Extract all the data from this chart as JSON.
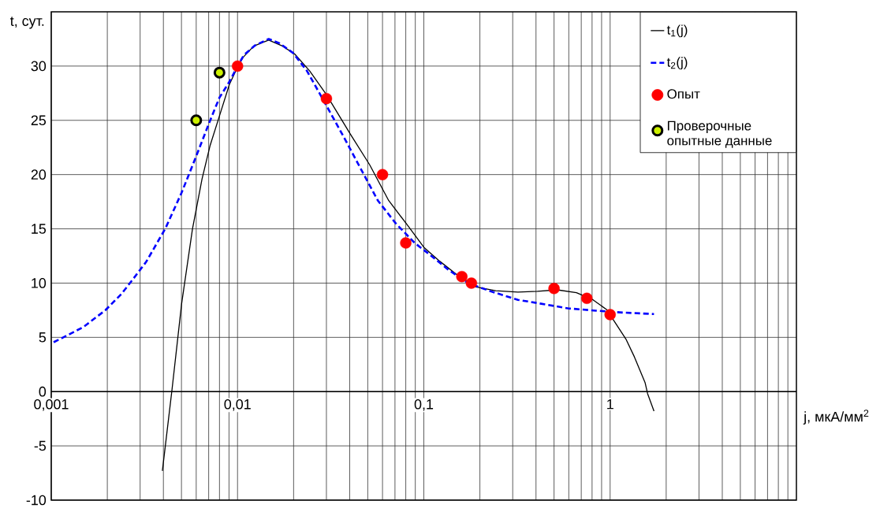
{
  "chart_data": {
    "type": "line",
    "xlabel": "j, мкА/мм$^{2}$",
    "ylabel": "t, сут.",
    "log": "x",
    "xlim": [
      0.001,
      10
    ],
    "ylim": [
      -10,
      35
    ],
    "xticks": [
      {
        "value": 0.001,
        "label": "0,001"
      },
      {
        "value": 0.01,
        "label": "0,01"
      },
      {
        "value": 0.1,
        "label": "0,1"
      },
      {
        "value": 1,
        "label": "1"
      }
    ],
    "yticks": [
      -10,
      -5,
      0,
      5,
      10,
      15,
      20,
      25,
      30
    ],
    "grid": true,
    "legend": "top right",
    "series": [
      {
        "name": "t$_{1}$(j)",
        "color": "#000000",
        "line_style": "solid",
        "marker": "none",
        "x": [
          0.00395,
          0.00445,
          0.00501,
          0.00573,
          0.00645,
          0.00713,
          0.00803,
          0.00904,
          0.01,
          0.0107,
          0.01225,
          0.0147,
          0.0174,
          0.0203,
          0.0244,
          0.0299,
          0.0404,
          0.0512,
          0.0648,
          0.082,
          0.1,
          0.122,
          0.15,
          0.191,
          0.243,
          0.32,
          0.407,
          0.52,
          0.66,
          0.81,
          0.96,
          1.22,
          1.35,
          1.54,
          1.59,
          1.72
        ],
        "values": [
          -7.3,
          0.2,
          8.1,
          15.0,
          19.6,
          22.7,
          25.5,
          28.3,
          29.9,
          30.8,
          31.85,
          32.4,
          31.85,
          31.1,
          29.55,
          27.4,
          23.7,
          20.9,
          17.6,
          15.3,
          13.3,
          12.0,
          10.8,
          9.64,
          9.3,
          9.17,
          9.25,
          9.38,
          9.11,
          8.46,
          7.54,
          4.79,
          3.2,
          0.84,
          -0.2,
          -1.8
        ]
      },
      {
        "name": "t$_{2}$(j)",
        "color": "#0000ff",
        "line_style": "dashed",
        "marker": "none",
        "x": [
          0.00103,
          0.00122,
          0.00149,
          0.00195,
          0.00238,
          0.00273,
          0.00323,
          0.00409,
          0.005,
          0.00597,
          0.00702,
          0.008,
          0.009,
          0.0098,
          0.0108,
          0.0124,
          0.0147,
          0.0168,
          0.0199,
          0.0236,
          0.0299,
          0.0379,
          0.048,
          0.0567,
          0.0707,
          0.0893,
          0.107,
          0.136,
          0.173,
          0.228,
          0.32,
          0.42,
          0.594,
          0.84,
          1.18,
          1.72
        ],
        "values": [
          4.55,
          5.19,
          5.96,
          7.49,
          9.0,
          10.3,
          11.95,
          15.0,
          18.3,
          21.6,
          24.7,
          27.1,
          28.5,
          29.7,
          31.0,
          31.9,
          32.5,
          32.1,
          31.2,
          29.55,
          26.4,
          23.2,
          19.9,
          17.6,
          15.5,
          13.7,
          12.66,
          11.2,
          10.0,
          9.25,
          8.46,
          8.12,
          7.67,
          7.46,
          7.28,
          7.15
        ]
      },
      {
        "name": "Опыт",
        "type": "scatter",
        "color": "#ff0000",
        "marker": "circle",
        "x": [
          0.01,
          0.03,
          0.06,
          0.08,
          0.16,
          0.18,
          0.5,
          0.75,
          1.0
        ],
        "values": [
          30.0,
          27.0,
          20.0,
          13.7,
          10.6,
          10.0,
          9.5,
          8.6,
          7.1
        ]
      },
      {
        "name": "Проверочные опытные данные",
        "type": "scatter",
        "color": "#ccf000",
        "marker": "circle",
        "x": [
          0.006,
          0.008
        ],
        "values": [
          25.0,
          29.4
        ]
      }
    ]
  }
}
